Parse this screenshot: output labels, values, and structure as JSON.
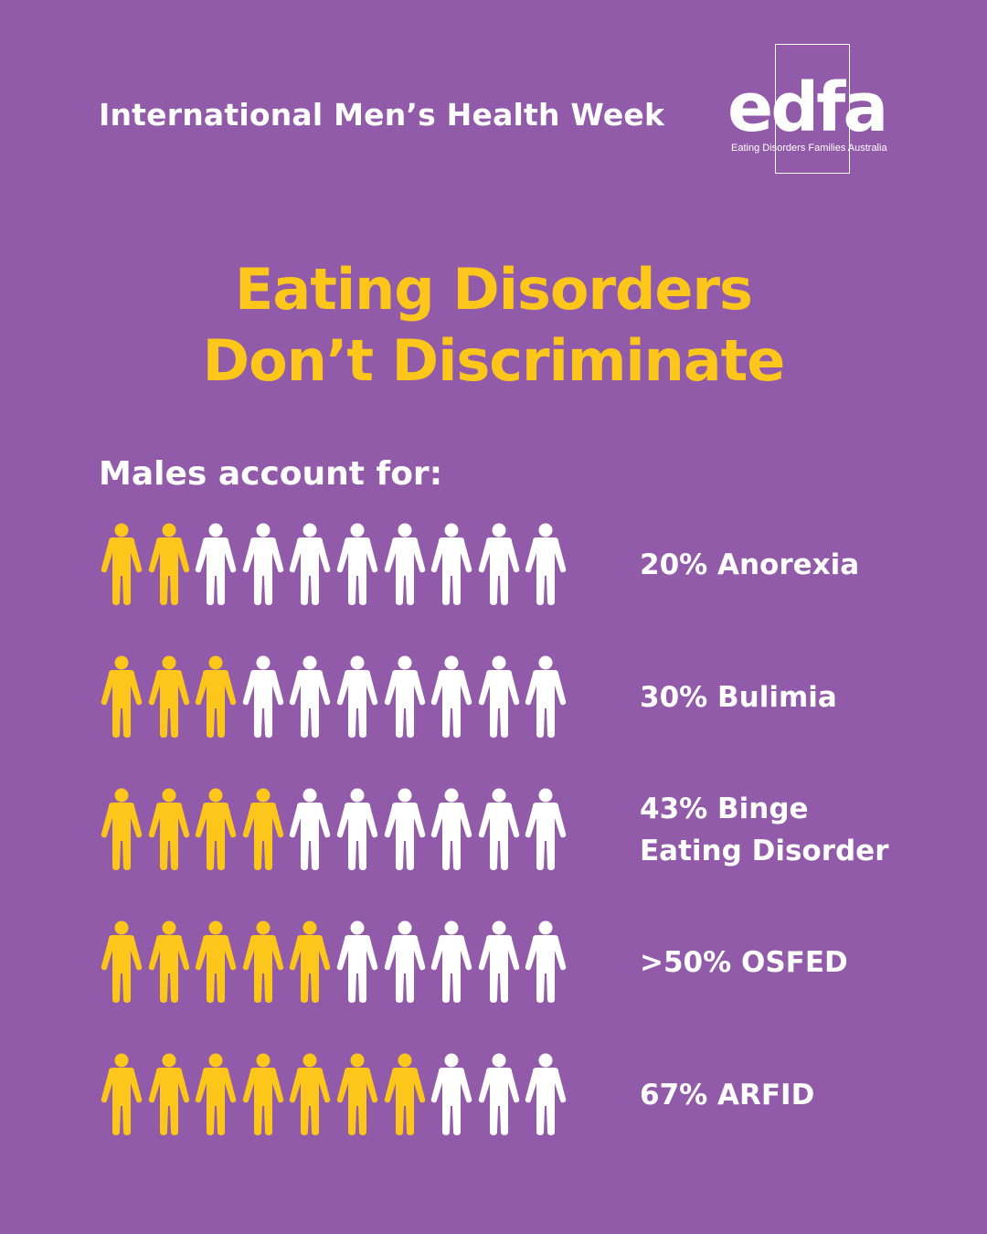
{
  "colors": {
    "background": "#925ba9",
    "highlight_figure": "#fcc71a",
    "plain_figure": "#ffffff",
    "title": "#fcc71a",
    "text": "#ffffff"
  },
  "header": {
    "event_text": "International Men’s Health Week"
  },
  "logo": {
    "wordmark": "edfa",
    "tagline": "Eating Disorders Families Australia"
  },
  "title": {
    "line1": "Eating Disorders",
    "line2": "Don’t Discriminate"
  },
  "intro": "Males account for:",
  "rows": [
    {
      "label": "20% Anorexia",
      "highlighted": 2,
      "total": 10
    },
    {
      "label": "30% Bulimia",
      "highlighted": 3,
      "total": 10
    },
    {
      "label": "43% Binge\nEating Disorder",
      "highlighted": 4,
      "total": 10
    },
    {
      "label": ">50% OSFED",
      "highlighted": 5,
      "total": 10
    },
    {
      "label": "67% ARFID",
      "highlighted": 7,
      "total": 10
    }
  ]
}
